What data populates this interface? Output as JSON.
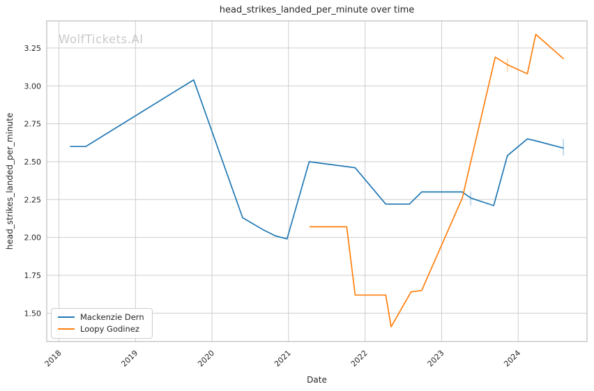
{
  "watermark": {
    "text": "WolfTickets.AI",
    "color": "#c9c9c9"
  },
  "chart_data": {
    "type": "line",
    "title": "head_strikes_landed_per_minute over time",
    "xlabel": "Date",
    "ylabel": "head_strikes_landed_per_minute",
    "grid": true,
    "legend_position": "lower left",
    "xlim": [
      2017.84,
      2024.9
    ],
    "ylim": [
      1.313,
      3.429
    ],
    "x_ticks": [
      2018,
      2019,
      2020,
      2021,
      2022,
      2023,
      2024
    ],
    "y_ticks": [
      1.5,
      1.75,
      2.0,
      2.25,
      2.5,
      2.75,
      3.0,
      3.25
    ],
    "colors": {
      "grid": "#cdcdcd",
      "spine": "#bcbcbc",
      "text": "#262626"
    },
    "series": [
      {
        "name": "Mackenzie Dern",
        "color": "#1f77b4",
        "ci_color": "#b5d4ea",
        "points": [
          [
            2018.15,
            2.6
          ],
          [
            2018.35,
            2.6
          ],
          [
            2019.76,
            3.04
          ],
          [
            2020.4,
            2.13
          ],
          [
            2020.67,
            2.05
          ],
          [
            2020.83,
            2.01
          ],
          [
            2020.98,
            1.99
          ],
          [
            2021.27,
            2.5
          ],
          [
            2021.87,
            2.46
          ],
          [
            2022.27,
            2.22
          ],
          [
            2022.58,
            2.22
          ],
          [
            2022.74,
            2.3
          ],
          [
            2023.27,
            2.3
          ],
          [
            2023.38,
            2.26
          ],
          [
            2023.68,
            2.21
          ],
          [
            2023.86,
            2.54
          ],
          [
            2024.12,
            2.65
          ],
          [
            2024.21,
            2.64
          ],
          [
            2024.59,
            2.59
          ]
        ],
        "error_bars": [
          {
            "x": 2023.38,
            "low": 2.21,
            "high": 2.3
          },
          {
            "x": 2024.59,
            "low": 2.54,
            "high": 2.65
          }
        ]
      },
      {
        "name": "Loopy Godinez",
        "color": "#ff7f0e",
        "ci_color": "#ffd4a9",
        "points": [
          [
            2021.28,
            2.07
          ],
          [
            2021.76,
            2.07
          ],
          [
            2021.87,
            1.62
          ],
          [
            2022.27,
            1.62
          ],
          [
            2022.34,
            1.41
          ],
          [
            2022.6,
            1.64
          ],
          [
            2022.74,
            1.65
          ],
          [
            2023.27,
            2.26
          ],
          [
            2023.7,
            3.19
          ],
          [
            2023.86,
            3.14
          ],
          [
            2024.12,
            3.08
          ],
          [
            2024.23,
            3.34
          ],
          [
            2024.59,
            3.18
          ]
        ],
        "error_bars": [
          {
            "x": 2023.86,
            "low": 3.09,
            "high": 3.18
          }
        ]
      }
    ]
  }
}
